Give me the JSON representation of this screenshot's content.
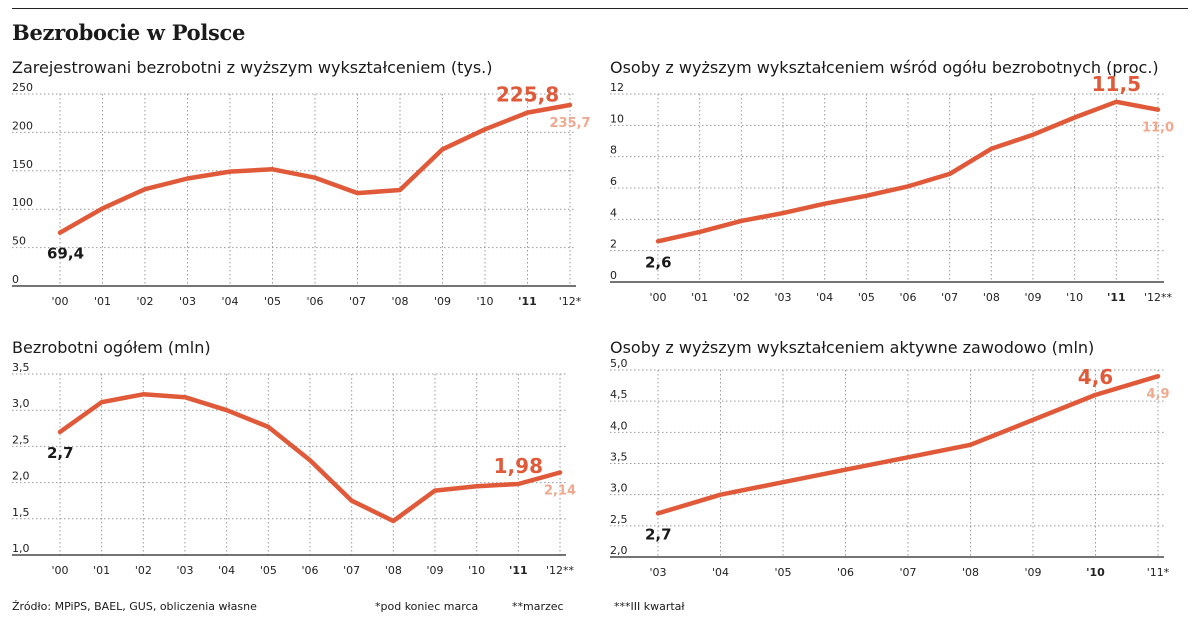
{
  "title": "Bezrobocie w Polsce",
  "colors": {
    "line": "#e05a3a",
    "highlight": "#e05a3a",
    "last": "#f0a98f",
    "grid": "#9a9a9a",
    "axis": "#222222"
  },
  "footer": {
    "source": "Źródło: MPiPS, BAEL, GUS, obliczenia własne",
    "note1": "*pod koniec marca",
    "note2": "**marzec",
    "note3": "***III kwartał"
  },
  "chart_data": [
    {
      "type": "line",
      "title": "Zarejestrowani bezrobotni z wyższym wykształceniem (tys.)",
      "categories": [
        "'00",
        "'01",
        "'02",
        "'03",
        "'04",
        "'05",
        "'06",
        "'07",
        "'08",
        "'09",
        "'10",
        "'11",
        "'12*"
      ],
      "highlight_category": 11,
      "values": [
        69.4,
        101,
        126,
        140,
        149,
        152,
        141,
        121,
        125,
        178,
        204,
        225.8,
        235.7
      ],
      "yticks": [
        "0",
        "50",
        "100",
        "150",
        "200",
        "250"
      ],
      "ylim": [
        0,
        250
      ],
      "grid": true,
      "labels": {
        "start": "69,4",
        "highlight": "225,8",
        "last": "235,7"
      }
    },
    {
      "type": "line",
      "title": "Osoby z wyższym wykształceniem wśród ogółu bezrobotnych (proc.)",
      "categories": [
        "'00",
        "'01",
        "'02",
        "'03",
        "'04",
        "'05",
        "'06",
        "'07",
        "'08",
        "'09",
        "'10",
        "'11",
        "'12**"
      ],
      "highlight_category": 11,
      "values": [
        2.6,
        3.2,
        3.9,
        4.4,
        5.0,
        5.5,
        6.1,
        6.9,
        8.5,
        9.4,
        10.5,
        11.5,
        11.0
      ],
      "yticks": [
        "0",
        "2",
        "4",
        "6",
        "8",
        "10",
        "12"
      ],
      "ylim": [
        0,
        12
      ],
      "grid": true,
      "labels": {
        "start": "2,6",
        "highlight": "11,5",
        "last": "11,0"
      }
    },
    {
      "type": "line",
      "title": "Bezrobotni ogółem (mln)",
      "categories": [
        "'00",
        "'01",
        "'02",
        "'03",
        "'04",
        "'05",
        "'06",
        "'07",
        "'08",
        "'09",
        "'10",
        "'11",
        "'12**"
      ],
      "highlight_category": 11,
      "values": [
        2.7,
        3.11,
        3.22,
        3.18,
        3.0,
        2.77,
        2.31,
        1.75,
        1.47,
        1.89,
        1.95,
        1.98,
        2.14
      ],
      "yticks": [
        "1,0",
        "1,5",
        "2,0",
        "2,5",
        "3,0",
        "3,5"
      ],
      "ylim": [
        1.0,
        3.5
      ],
      "grid": true,
      "labels": {
        "start": "2,7",
        "highlight": "1,98",
        "last": "2,14"
      }
    },
    {
      "type": "line",
      "title": "Osoby z wyższym wykształceniem aktywne zawodowo (mln)",
      "categories": [
        "'03",
        "'04",
        "'05",
        "'06",
        "'07",
        "'08",
        "'09",
        "'10",
        "'11*"
      ],
      "highlight_category": 7,
      "values": [
        2.7,
        3.0,
        3.2,
        3.4,
        3.6,
        3.8,
        4.2,
        4.6,
        4.9
      ],
      "yticks": [
        "2,0",
        "2,5",
        "3,0",
        "3,5",
        "4,0",
        "4,5",
        "5,0"
      ],
      "ylim": [
        2.0,
        5.0
      ],
      "grid": true,
      "labels": {
        "start": "2,7",
        "highlight": "4,6",
        "last": "4,9"
      }
    }
  ]
}
